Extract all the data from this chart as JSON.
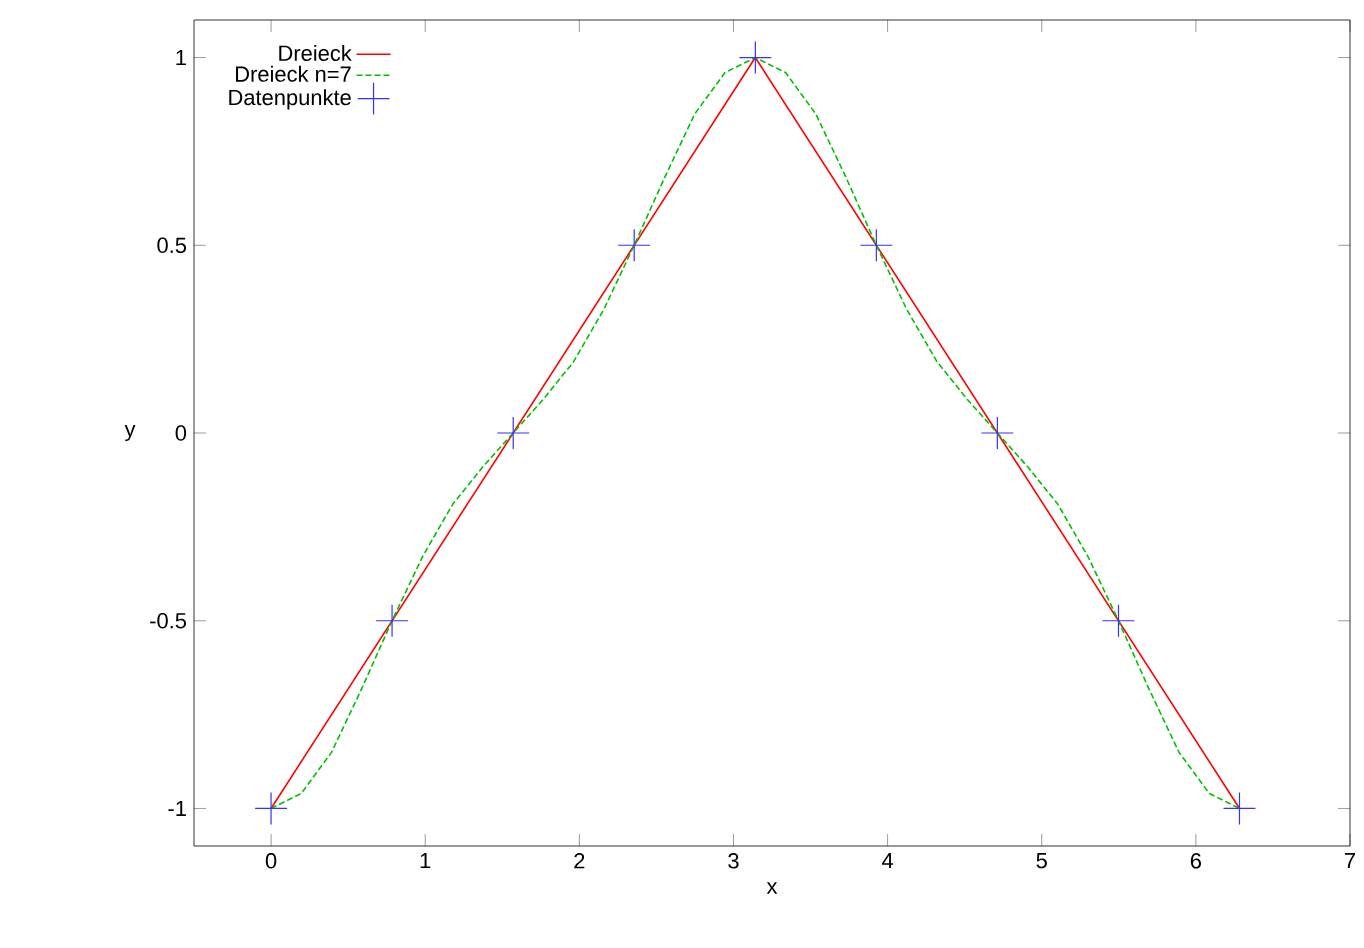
{
  "chart_data": {
    "type": "line",
    "xlabel": "x",
    "ylabel": "y",
    "xlim": [
      -0.5,
      7
    ],
    "ylim": [
      -1.1,
      1.1
    ],
    "xticks": [
      0,
      1,
      2,
      3,
      4,
      5,
      6,
      7
    ],
    "yticks": [
      -1,
      -0.5,
      0,
      0.5,
      1
    ],
    "grid": false,
    "legend": "top left",
    "series": [
      {
        "name": "Dreieck",
        "color": "#ff0000",
        "line_style": "solid",
        "marker": "none",
        "x": [
          0,
          3.1416,
          6.2832
        ],
        "values": [
          -1,
          1,
          -1
        ]
      },
      {
        "name": "Dreieck n=7",
        "color": "#00c000",
        "line_style": "dashed",
        "marker": "none",
        "x": [
          0,
          0.196,
          0.393,
          0.589,
          0.785,
          0.982,
          1.178,
          1.374,
          1.571,
          1.767,
          1.963,
          2.16,
          2.356,
          2.553,
          2.749,
          2.945,
          3.142,
          3.338,
          3.534,
          3.731,
          3.927,
          4.123,
          4.32,
          4.516,
          4.712,
          4.909,
          5.105,
          5.301,
          5.498,
          5.694,
          5.89,
          6.087,
          6.283
        ],
        "values": [
          -1,
          -0.96,
          -0.85,
          -0.68,
          -0.5,
          -0.33,
          -0.19,
          -0.09,
          0,
          0.09,
          0.19,
          0.33,
          0.5,
          0.68,
          0.85,
          0.96,
          1,
          0.96,
          0.85,
          0.68,
          0.5,
          0.33,
          0.19,
          0.09,
          0,
          -0.09,
          -0.19,
          -0.33,
          -0.5,
          -0.68,
          -0.85,
          -0.96,
          -1
        ]
      },
      {
        "name": "Datenpunkte",
        "type": "scatter",
        "color": "#3333ff",
        "marker": "cross",
        "x": [
          0,
          0.785,
          1.571,
          2.356,
          3.142,
          3.927,
          4.712,
          5.498,
          6.283
        ],
        "values": [
          -1,
          -0.5,
          0,
          0.5,
          1,
          0.5,
          0,
          -0.5,
          -1
        ]
      }
    ]
  }
}
